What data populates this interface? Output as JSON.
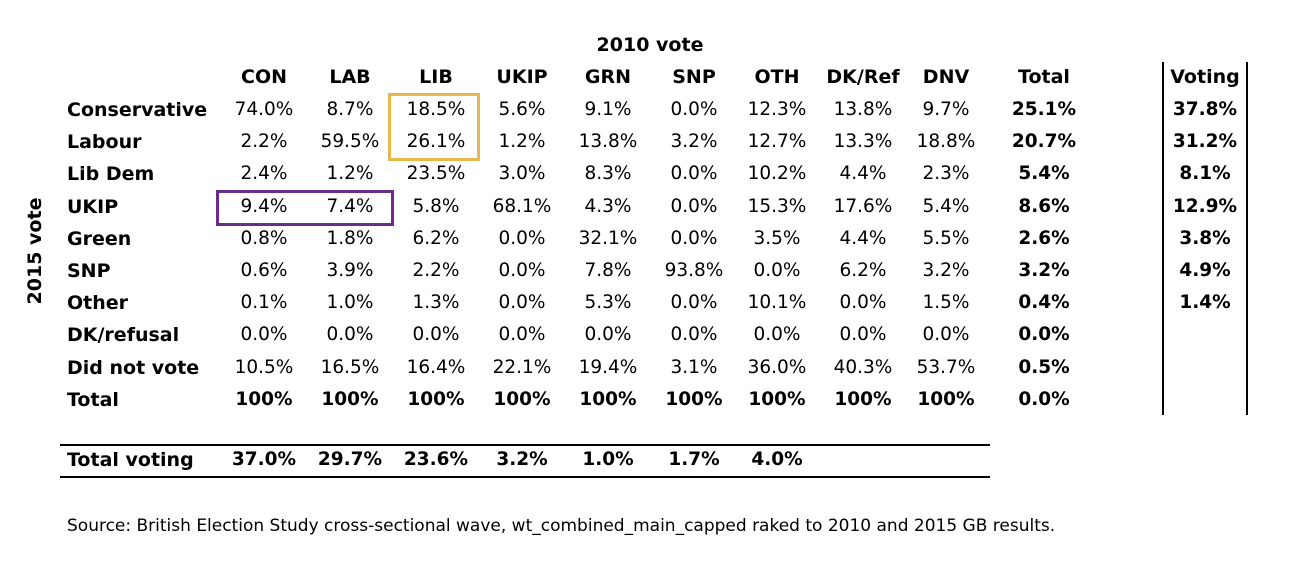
{
  "chart_data": {
    "type": "table",
    "title": "2010 vote",
    "row_axis_label": "2015 vote",
    "columns": [
      "CON",
      "LAB",
      "LIB",
      "UKIP",
      "GRN",
      "SNP",
      "OTH",
      "DK/Ref",
      "DNV",
      "Total"
    ],
    "voting_header": "Voting",
    "rows": [
      {
        "label": "Conservative",
        "values": [
          "74.0%",
          "8.7%",
          "18.5%",
          "5.6%",
          "9.1%",
          "0.0%",
          "12.3%",
          "13.8%",
          "9.7%"
        ],
        "total": "25.1%",
        "voting": "37.8%"
      },
      {
        "label": "Labour",
        "values": [
          "2.2%",
          "59.5%",
          "26.1%",
          "1.2%",
          "13.8%",
          "3.2%",
          "12.7%",
          "13.3%",
          "18.8%"
        ],
        "total": "20.7%",
        "voting": "31.2%"
      },
      {
        "label": "Lib Dem",
        "values": [
          "2.4%",
          "1.2%",
          "23.5%",
          "3.0%",
          "8.3%",
          "0.0%",
          "10.2%",
          "4.4%",
          "2.3%"
        ],
        "total": "5.4%",
        "voting": "8.1%"
      },
      {
        "label": "UKIP",
        "values": [
          "9.4%",
          "7.4%",
          "5.8%",
          "68.1%",
          "4.3%",
          "0.0%",
          "15.3%",
          "17.6%",
          "5.4%"
        ],
        "total": "8.6%",
        "voting": "12.9%"
      },
      {
        "label": "Green",
        "values": [
          "0.8%",
          "1.8%",
          "6.2%",
          "0.0%",
          "32.1%",
          "0.0%",
          "3.5%",
          "4.4%",
          "5.5%"
        ],
        "total": "2.6%",
        "voting": "3.8%"
      },
      {
        "label": "SNP",
        "values": [
          "0.6%",
          "3.9%",
          "2.2%",
          "0.0%",
          "7.8%",
          "93.8%",
          "0.0%",
          "6.2%",
          "3.2%"
        ],
        "total": "3.2%",
        "voting": "4.9%"
      },
      {
        "label": "Other",
        "values": [
          "0.1%",
          "1.0%",
          "1.3%",
          "0.0%",
          "5.3%",
          "0.0%",
          "10.1%",
          "0.0%",
          "1.5%"
        ],
        "total": "0.4%",
        "voting": "1.4%"
      },
      {
        "label": "DK/refusal",
        "values": [
          "0.0%",
          "0.0%",
          "0.0%",
          "0.0%",
          "0.0%",
          "0.0%",
          "0.0%",
          "0.0%",
          "0.0%"
        ],
        "total": "0.0%",
        "voting": ""
      },
      {
        "label": "Did not vote",
        "values": [
          "10.5%",
          "16.5%",
          "16.4%",
          "22.1%",
          "19.4%",
          "3.1%",
          "36.0%",
          "40.3%",
          "53.7%"
        ],
        "total": "0.5%",
        "voting": ""
      },
      {
        "label": "Total",
        "values": [
          "100%",
          "100%",
          "100%",
          "100%",
          "100%",
          "100%",
          "100%",
          "100%",
          "100%"
        ],
        "total": "0.0%",
        "voting": "",
        "bold": true
      }
    ],
    "total_voting": {
      "label": "Total voting",
      "values": [
        "37.0%",
        "29.7%",
        "23.6%",
        "3.2%",
        "1.0%",
        "1.7%",
        "4.0%"
      ]
    },
    "highlights": [
      {
        "name": "lib-to-con-lab-highlight",
        "color": "#E8B84B",
        "rows": [
          "Conservative",
          "Labour"
        ],
        "columns": [
          "LIB"
        ]
      },
      {
        "name": "con-lab-to-ukip-highlight",
        "color": "#6B2D8A",
        "rows": [
          "UKIP"
        ],
        "columns": [
          "CON",
          "LAB"
        ]
      }
    ]
  },
  "source_note": "Source: British Election Study cross-sectional wave, wt_combined_main_capped raked to 2010 and 2015 GB results."
}
